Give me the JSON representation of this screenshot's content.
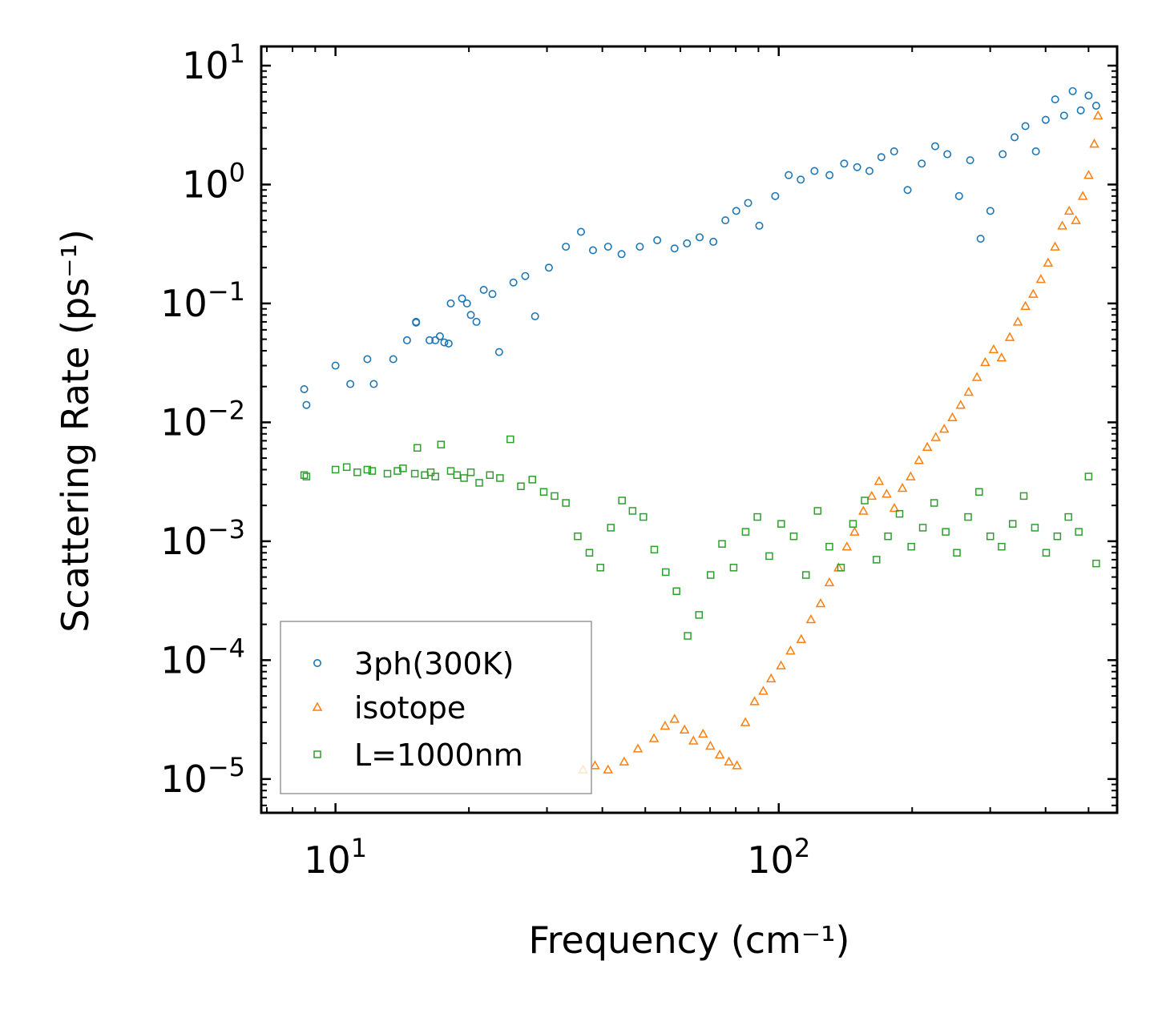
{
  "chart_data": {
    "type": "scatter",
    "title": "",
    "xlabel": "Frequency (cm⁻¹)",
    "ylabel": "Scattering Rate (ps⁻¹)",
    "xscale": "log",
    "yscale": "log",
    "xlim": [
      6.8,
      580
    ],
    "ylim": [
      5.2e-06,
      14.5
    ],
    "x_ticks": [
      {
        "value": 10,
        "base": "10",
        "exp": "1"
      },
      {
        "value": 100,
        "base": "10",
        "exp": "2"
      }
    ],
    "y_ticks": [
      {
        "value": 10,
        "base": "10",
        "exp": "1"
      },
      {
        "value": 1,
        "base": "10",
        "exp": "0"
      },
      {
        "value": 0.1,
        "base": "10",
        "exp": "−1"
      },
      {
        "value": 0.01,
        "base": "10",
        "exp": "−2"
      },
      {
        "value": 0.001,
        "base": "10",
        "exp": "−3"
      },
      {
        "value": 0.0001,
        "base": "10",
        "exp": "−4"
      },
      {
        "value": 1e-05,
        "base": "10",
        "exp": "−5"
      }
    ],
    "legend_position": "lower-left",
    "grid": false,
    "series": [
      {
        "name": "3ph(300K)",
        "marker": "circle",
        "color": "#1f77b4",
        "x": [
          8.5,
          8.6,
          10,
          10.8,
          11.8,
          12.2,
          13.5,
          14.5,
          15.2,
          15.2,
          16.3,
          16.8,
          17.2,
          17.6,
          18,
          18.2,
          19.3,
          19.8,
          20.2,
          20.8,
          21.6,
          22.6,
          23.4,
          25.2,
          26.8,
          28.2,
          30.3,
          33.1,
          35.8,
          38.1,
          41.2,
          44.2,
          48.6,
          53.2,
          58.2,
          62.1,
          66.3,
          71.2,
          75.8,
          80.2,
          85.3,
          90.4,
          98.2,
          105.3,
          112.1,
          120.4,
          130.2,
          140.5,
          150.3,
          160.2,
          170.4,
          182.1,
          195.3,
          210.2,
          225.4,
          240.1,
          255.2,
          270.3,
          285.4,
          300.2,
          320.1,
          340.5,
          360.2,
          380.3,
          400.2,
          420.4,
          440.3,
          460.5,
          480.2,
          500.1,
          520.2
        ],
        "y": [
          0.019,
          0.014,
          0.03,
          0.021,
          0.034,
          0.021,
          0.034,
          0.049,
          0.07,
          0.069,
          0.049,
          0.049,
          0.053,
          0.047,
          0.046,
          0.1,
          0.11,
          0.1,
          0.08,
          0.07,
          0.13,
          0.12,
          0.039,
          0.15,
          0.17,
          0.078,
          0.2,
          0.3,
          0.4,
          0.28,
          0.3,
          0.26,
          0.3,
          0.34,
          0.29,
          0.32,
          0.36,
          0.33,
          0.5,
          0.6,
          0.7,
          0.45,
          0.8,
          1.2,
          1.1,
          1.3,
          1.2,
          1.5,
          1.4,
          1.3,
          1.7,
          1.9,
          0.9,
          1.5,
          2.1,
          1.8,
          0.8,
          1.6,
          0.35,
          0.6,
          1.8,
          2.5,
          3.1,
          1.9,
          3.5,
          5.2,
          3.8,
          6.1,
          4.2,
          5.6,
          4.6
        ]
      },
      {
        "name": "isotope",
        "marker": "triangle",
        "color": "#ff7f0e",
        "x": [
          36.2,
          38.5,
          41.2,
          44.8,
          48.1,
          52.3,
          55.4,
          58.2,
          61.3,
          64.2,
          67.5,
          70.1,
          73.6,
          77.2,
          80.5,
          84.1,
          88.2,
          92.3,
          96.1,
          101.2,
          106.3,
          112.4,
          118.2,
          124.3,
          130.1,
          136.4,
          142.5,
          148.3,
          155.2,
          162.1,
          168.4,
          175.2,
          182.3,
          190.1,
          198.4,
          207.2,
          216.3,
          226.1,
          236.2,
          246.5,
          257.3,
          268.2,
          280.1,
          292.3,
          305.4,
          318.2,
          332.1,
          346.3,
          360.2,
          375.1,
          390.3,
          405.2,
          420.1,
          436.3,
          452.1,
          468.2,
          485.3,
          500.2,
          515.1,
          525.3
        ],
        "y": [
          1.2e-05,
          1.3e-05,
          1.2e-05,
          1.4e-05,
          1.8e-05,
          2.2e-05,
          2.8e-05,
          3.2e-05,
          2.6e-05,
          2.1e-05,
          2.4e-05,
          1.9e-05,
          1.6e-05,
          1.4e-05,
          1.3e-05,
          3e-05,
          4.5e-05,
          5.5e-05,
          7e-05,
          9e-05,
          0.00012,
          0.00015,
          0.00022,
          0.0003,
          0.00045,
          0.0006,
          0.0009,
          0.0012,
          0.0018,
          0.0024,
          0.0032,
          0.0025,
          0.0019,
          0.0028,
          0.0035,
          0.0048,
          0.0062,
          0.0075,
          0.0088,
          0.011,
          0.014,
          0.018,
          0.024,
          0.032,
          0.041,
          0.035,
          0.052,
          0.07,
          0.095,
          0.12,
          0.16,
          0.22,
          0.3,
          0.45,
          0.6,
          0.5,
          0.8,
          1.2,
          2.2,
          3.8
        ]
      },
      {
        "name": "L=1000nm",
        "marker": "square",
        "color": "#2ca02c",
        "x": [
          8.5,
          8.6,
          10,
          10.6,
          11.2,
          11.8,
          12.1,
          13.1,
          13.8,
          14.2,
          15.1,
          15.3,
          15.9,
          16.4,
          16.8,
          17.3,
          18.2,
          18.8,
          19.5,
          20.2,
          21.1,
          22.3,
          23.5,
          24.8,
          26.2,
          27.8,
          29.5,
          31.2,
          33.1,
          35.2,
          37.4,
          39.6,
          41.8,
          44.3,
          46.8,
          49.5,
          52.4,
          55.6,
          58.8,
          62.3,
          66.1,
          70.2,
          74.5,
          79.1,
          84.2,
          89.5,
          95.2,
          101.3,
          108.1,
          115.2,
          122.4,
          130.1,
          138.2,
          147.1,
          156.3,
          166.2,
          176.4,
          187.3,
          199.1,
          211.4,
          224.2,
          238.1,
          252.3,
          267.4,
          283.2,
          300.1,
          318.3,
          337.2,
          357.1,
          378.4,
          401.2,
          425.1,
          450.3,
          475.2,
          500.1,
          520.3
        ],
        "y": [
          0.0036,
          0.0035,
          0.004,
          0.0042,
          0.0038,
          0.004,
          0.0039,
          0.0037,
          0.0039,
          0.0041,
          0.0037,
          0.0061,
          0.0036,
          0.0038,
          0.0035,
          0.0065,
          0.0039,
          0.0036,
          0.0034,
          0.0038,
          0.0031,
          0.0036,
          0.0034,
          0.0072,
          0.0029,
          0.0033,
          0.0026,
          0.0024,
          0.0021,
          0.0011,
          0.0008,
          0.0006,
          0.0013,
          0.0022,
          0.0018,
          0.0016,
          0.00085,
          0.00055,
          0.00038,
          0.00016,
          0.00024,
          0.00052,
          0.00095,
          0.0006,
          0.0012,
          0.0016,
          0.00075,
          0.0014,
          0.0011,
          0.00052,
          0.0018,
          0.0009,
          0.0006,
          0.0014,
          0.0022,
          0.0007,
          0.0011,
          0.0017,
          0.0009,
          0.0013,
          0.0021,
          0.0012,
          0.0008,
          0.0016,
          0.0026,
          0.0011,
          0.0009,
          0.0014,
          0.0024,
          0.0013,
          0.0008,
          0.0011,
          0.0016,
          0.0012,
          0.0035,
          0.00065
        ]
      }
    ]
  }
}
